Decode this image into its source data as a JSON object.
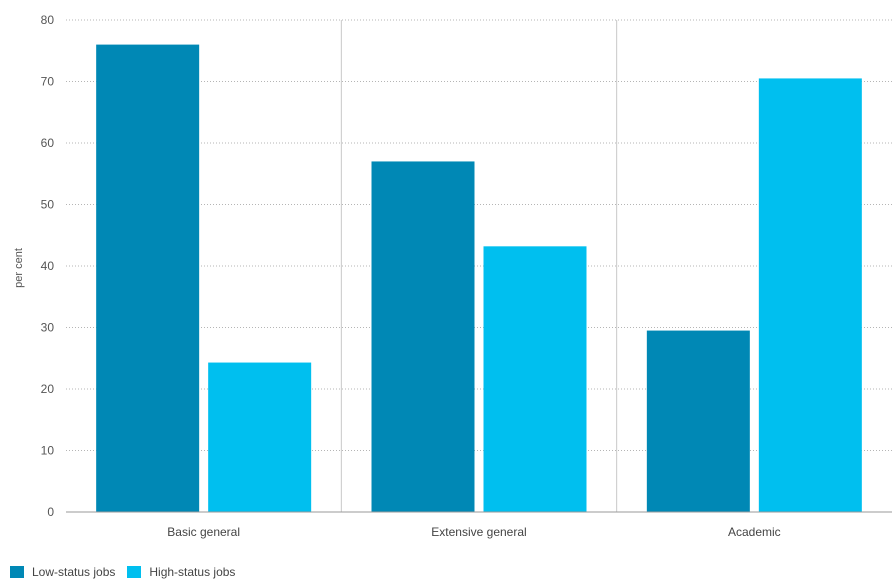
{
  "chart_data": {
    "type": "bar",
    "title": "",
    "xlabel": "",
    "ylabel": "per cent",
    "ylim": [
      0,
      80
    ],
    "yticks": [
      0,
      10,
      20,
      30,
      40,
      50,
      60,
      70,
      80
    ],
    "grid": true,
    "legend_position": "bottom-left",
    "categories": [
      "Basic general",
      "Extensive general",
      "Academic"
    ],
    "series": [
      {
        "name": "Low-status jobs",
        "color": "#0088b5",
        "values": [
          76,
          57,
          29.5
        ]
      },
      {
        "name": "High-status jobs",
        "color": "#00bfef",
        "values": [
          24.3,
          43.2,
          70.5
        ]
      }
    ]
  }
}
